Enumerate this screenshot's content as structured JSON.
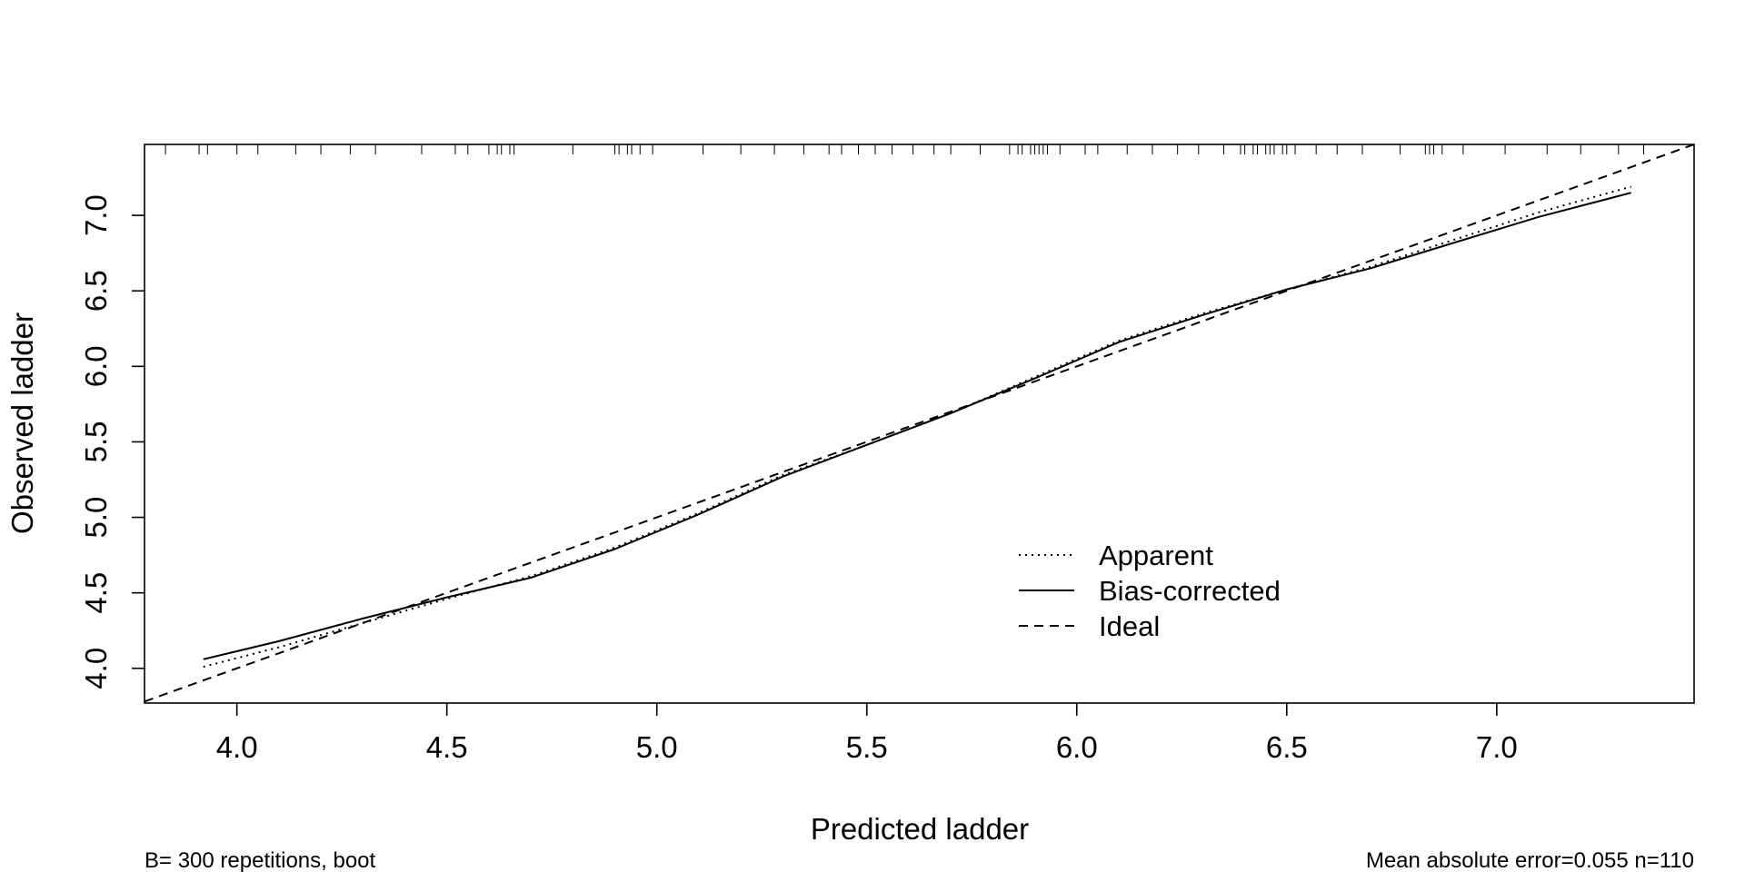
{
  "chart_data": {
    "type": "line",
    "title": "",
    "xlabel": "Predicted ladder",
    "ylabel": "Observed ladder",
    "xlim": [
      3.78,
      7.47
    ],
    "ylim": [
      3.77,
      7.47
    ],
    "x_ticks": [
      4.0,
      4.5,
      5.0,
      5.5,
      6.0,
      6.5,
      7.0
    ],
    "y_ticks": [
      4.0,
      4.5,
      5.0,
      5.5,
      6.0,
      6.5,
      7.0
    ],
    "x_tick_labels": [
      "4.0",
      "4.5",
      "5.0",
      "5.5",
      "6.0",
      "6.5",
      "7.0"
    ],
    "y_tick_labels": [
      "4.0",
      "4.5",
      "5.0",
      "5.5",
      "6.0",
      "6.5",
      "7.0"
    ],
    "grid": false,
    "legend_position": "bottom-right",
    "series": [
      {
        "name": "Apparent",
        "line_style": "dotted",
        "x": [
          3.92,
          4.1,
          4.3,
          4.5,
          4.7,
          4.9,
          5.1,
          5.3,
          5.5,
          5.7,
          5.9,
          6.1,
          6.3,
          6.5,
          6.7,
          6.9,
          7.1,
          7.32
        ],
        "y": [
          4.01,
          4.14,
          4.3,
          4.46,
          4.61,
          4.8,
          5.03,
          5.28,
          5.48,
          5.69,
          5.93,
          6.17,
          6.35,
          6.51,
          6.66,
          6.84,
          7.02,
          7.19
        ]
      },
      {
        "name": "Bias-corrected",
        "line_style": "solid",
        "x": [
          3.92,
          4.1,
          4.3,
          4.5,
          4.7,
          4.9,
          5.1,
          5.3,
          5.5,
          5.7,
          5.9,
          6.1,
          6.3,
          6.5,
          6.7,
          6.9,
          7.1,
          7.32
        ],
        "y": [
          4.06,
          4.18,
          4.33,
          4.47,
          4.6,
          4.79,
          5.02,
          5.27,
          5.48,
          5.69,
          5.92,
          6.16,
          6.34,
          6.51,
          6.65,
          6.82,
          6.99,
          7.15
        ]
      },
      {
        "name": "Ideal",
        "line_style": "dashed",
        "x": [
          3.78,
          7.47
        ],
        "y": [
          3.78,
          7.47
        ]
      }
    ],
    "rug_x": [
      3.83,
      3.91,
      3.93,
      4.0,
      4.05,
      4.14,
      4.2,
      4.27,
      4.33,
      4.44,
      4.52,
      4.55,
      4.6,
      4.62,
      4.63,
      4.65,
      4.66,
      4.8,
      4.9,
      4.91,
      4.93,
      4.94,
      4.96,
      4.99,
      5.11,
      5.2,
      5.28,
      5.35,
      5.41,
      5.44,
      5.48,
      5.52,
      5.56,
      5.61,
      5.66,
      5.7,
      5.77,
      5.84,
      5.86,
      5.87,
      5.89,
      5.9,
      5.91,
      5.92,
      5.93,
      5.96,
      6.02,
      6.05,
      6.12,
      6.18,
      6.24,
      6.29,
      6.35,
      6.39,
      6.4,
      6.42,
      6.43,
      6.45,
      6.46,
      6.47,
      6.49,
      6.5,
      6.52,
      6.57,
      6.62,
      6.68,
      6.77,
      6.83,
      6.84,
      6.85,
      6.87,
      6.92,
      7.02,
      7.12,
      7.2,
      7.29,
      7.35
    ],
    "footnote_left": "B= 300 repetitions, boot",
    "footnote_right": "Mean absolute error=0.055 n=110"
  }
}
